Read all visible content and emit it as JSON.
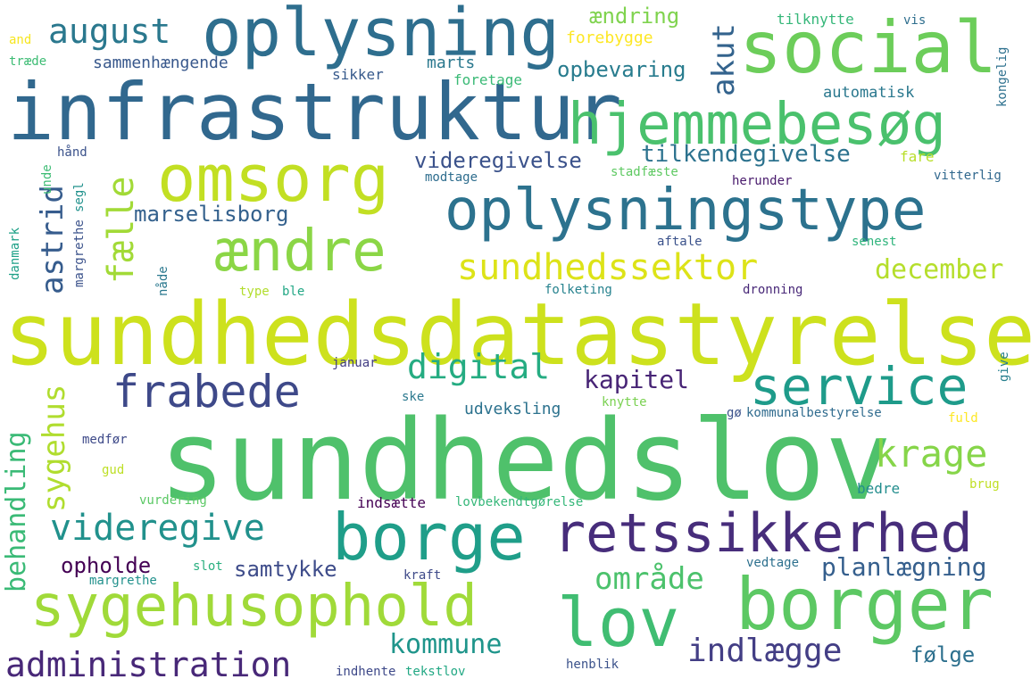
{
  "words": [
    {
      "text": "sundhedslov",
      "color": "#4fc16b"
    },
    {
      "text": "sundhedsdatastyrelse",
      "color": "#cde11d"
    },
    {
      "text": "infrastruktur",
      "color": "#31688e"
    },
    {
      "text": "oplysning",
      "color": "#2e6e8e"
    },
    {
      "text": "social",
      "color": "#6ccd5a"
    },
    {
      "text": "oplysningstype",
      "color": "#2c728e"
    },
    {
      "text": "hjemmebesøg",
      "color": "#4ac16d"
    },
    {
      "text": "omsorg",
      "color": "#c2df23"
    },
    {
      "text": "ændre",
      "color": "#8bd646"
    },
    {
      "text": "borger",
      "color": "#5cc863"
    },
    {
      "text": "borge",
      "color": "#1f9e89"
    },
    {
      "text": "retssikkerhed",
      "color": "#472d7b"
    },
    {
      "text": "lov",
      "color": "#40bd72"
    },
    {
      "text": "sygehusophold",
      "color": "#a0da39"
    },
    {
      "text": "frabede",
      "color": "#3e4989"
    },
    {
      "text": "service",
      "color": "#1e9b8a"
    },
    {
      "text": "videregive",
      "color": "#21918c"
    },
    {
      "text": "administration",
      "color": "#482878"
    },
    {
      "text": "august",
      "color": "#2a788e"
    },
    {
      "text": "sundhedssektor",
      "color": "#dde318"
    },
    {
      "text": "digital",
      "color": "#25ac82"
    },
    {
      "text": "krage",
      "color": "#86d549"
    },
    {
      "text": "kommune",
      "color": "#1f958b"
    },
    {
      "text": "indlægge",
      "color": "#433e85"
    },
    {
      "text": "planlægning",
      "color": "#355f8d"
    },
    {
      "text": "område",
      "color": "#4cc26c"
    },
    {
      "text": "december",
      "color": "#b5de2b"
    },
    {
      "text": "kapitel",
      "color": "#482576"
    },
    {
      "text": "opbevaring",
      "color": "#287c8e"
    },
    {
      "text": "tilkendegivelse",
      "color": "#2c728e"
    },
    {
      "text": "videregivelse",
      "color": "#3b528b"
    },
    {
      "text": "marselisborg",
      "color": "#34618d"
    },
    {
      "text": "samtykke",
      "color": "#3e4c8a"
    },
    {
      "text": "opholde",
      "color": "#440154"
    },
    {
      "text": "følge",
      "color": "#2d708e"
    },
    {
      "text": "ændring",
      "color": "#7fd34e"
    },
    {
      "text": "forebygge",
      "color": "#fde725"
    },
    {
      "text": "marts",
      "color": "#2a788e"
    },
    {
      "text": "foretage",
      "color": "#3aba76"
    },
    {
      "text": "sammenhængende",
      "color": "#38588c"
    },
    {
      "text": "tilknytte",
      "color": "#35b779"
    },
    {
      "text": "vis",
      "color": "#2e6e8e"
    },
    {
      "text": "automatisk",
      "color": "#2a788e"
    },
    {
      "text": "sikker",
      "color": "#375a8c"
    },
    {
      "text": "and",
      "color": "#f6e620"
    },
    {
      "text": "træde",
      "color": "#3dbc74"
    },
    {
      "text": "hånd",
      "color": "#3b528b"
    },
    {
      "text": "modtage",
      "color": "#2e6d8e"
    },
    {
      "text": "stadfæste",
      "color": "#5ec962"
    },
    {
      "text": "fare",
      "color": "#b8de29"
    },
    {
      "text": "herunder",
      "color": "#481a6c"
    },
    {
      "text": "vitterlig",
      "color": "#31688e"
    },
    {
      "text": "aftale",
      "color": "#3b528b"
    },
    {
      "text": "senest",
      "color": "#2fb47c"
    },
    {
      "text": "type",
      "color": "#b2dd2d"
    },
    {
      "text": "ble",
      "color": "#22a785"
    },
    {
      "text": "folketing",
      "color": "#26828e"
    },
    {
      "text": "dronning",
      "color": "#482878"
    },
    {
      "text": "januar",
      "color": "#433e85"
    },
    {
      "text": "ske",
      "color": "#2a788e"
    },
    {
      "text": "udveksling",
      "color": "#2c728e"
    },
    {
      "text": "knytte",
      "color": "#7ad151"
    },
    {
      "text": "gø",
      "color": "#3b528b"
    },
    {
      "text": "kommunalbestyrelse",
      "color": "#2f6b8e"
    },
    {
      "text": "fuld",
      "color": "#fde725"
    },
    {
      "text": "medfør",
      "color": "#3e4a89"
    },
    {
      "text": "gud",
      "color": "#bddf26"
    },
    {
      "text": "vurdering",
      "color": "#5ac864"
    },
    {
      "text": "indsætte",
      "color": "#440154"
    },
    {
      "text": "lovbekendtgørelse",
      "color": "#35b779"
    },
    {
      "text": "bedre",
      "color": "#228d8d"
    },
    {
      "text": "brug",
      "color": "#c0df25"
    },
    {
      "text": "slot",
      "color": "#29af7f"
    },
    {
      "text": "margrethe",
      "color": "#21918c"
    },
    {
      "text": "kraft",
      "color": "#3e4a89"
    },
    {
      "text": "vedtage",
      "color": "#2d708e"
    },
    {
      "text": "henblik",
      "color": "#3b528b"
    },
    {
      "text": "indhente",
      "color": "#3e4989"
    },
    {
      "text": "tekstlov",
      "color": "#22a884"
    },
    {
      "text": "akut",
      "color": "#33638d"
    },
    {
      "text": "fælle",
      "color": "#a2da37"
    },
    {
      "text": "astrid",
      "color": "#365c8d"
    },
    {
      "text": "sygehus",
      "color": "#b0dd2f"
    },
    {
      "text": "behandling",
      "color": "#3aba76"
    },
    {
      "text": "kongelig",
      "color": "#2d708e"
    },
    {
      "text": "give",
      "color": "#277f8e"
    },
    {
      "text": "danmark",
      "color": "#1fa188"
    },
    {
      "text": "unde",
      "color": "#3dbc74"
    },
    {
      "text": "segl",
      "color": "#21918c"
    },
    {
      "text": "margrethe",
      "color": "#3b528b"
    },
    {
      "text": "nåde",
      "color": "#2a788e"
    }
  ]
}
